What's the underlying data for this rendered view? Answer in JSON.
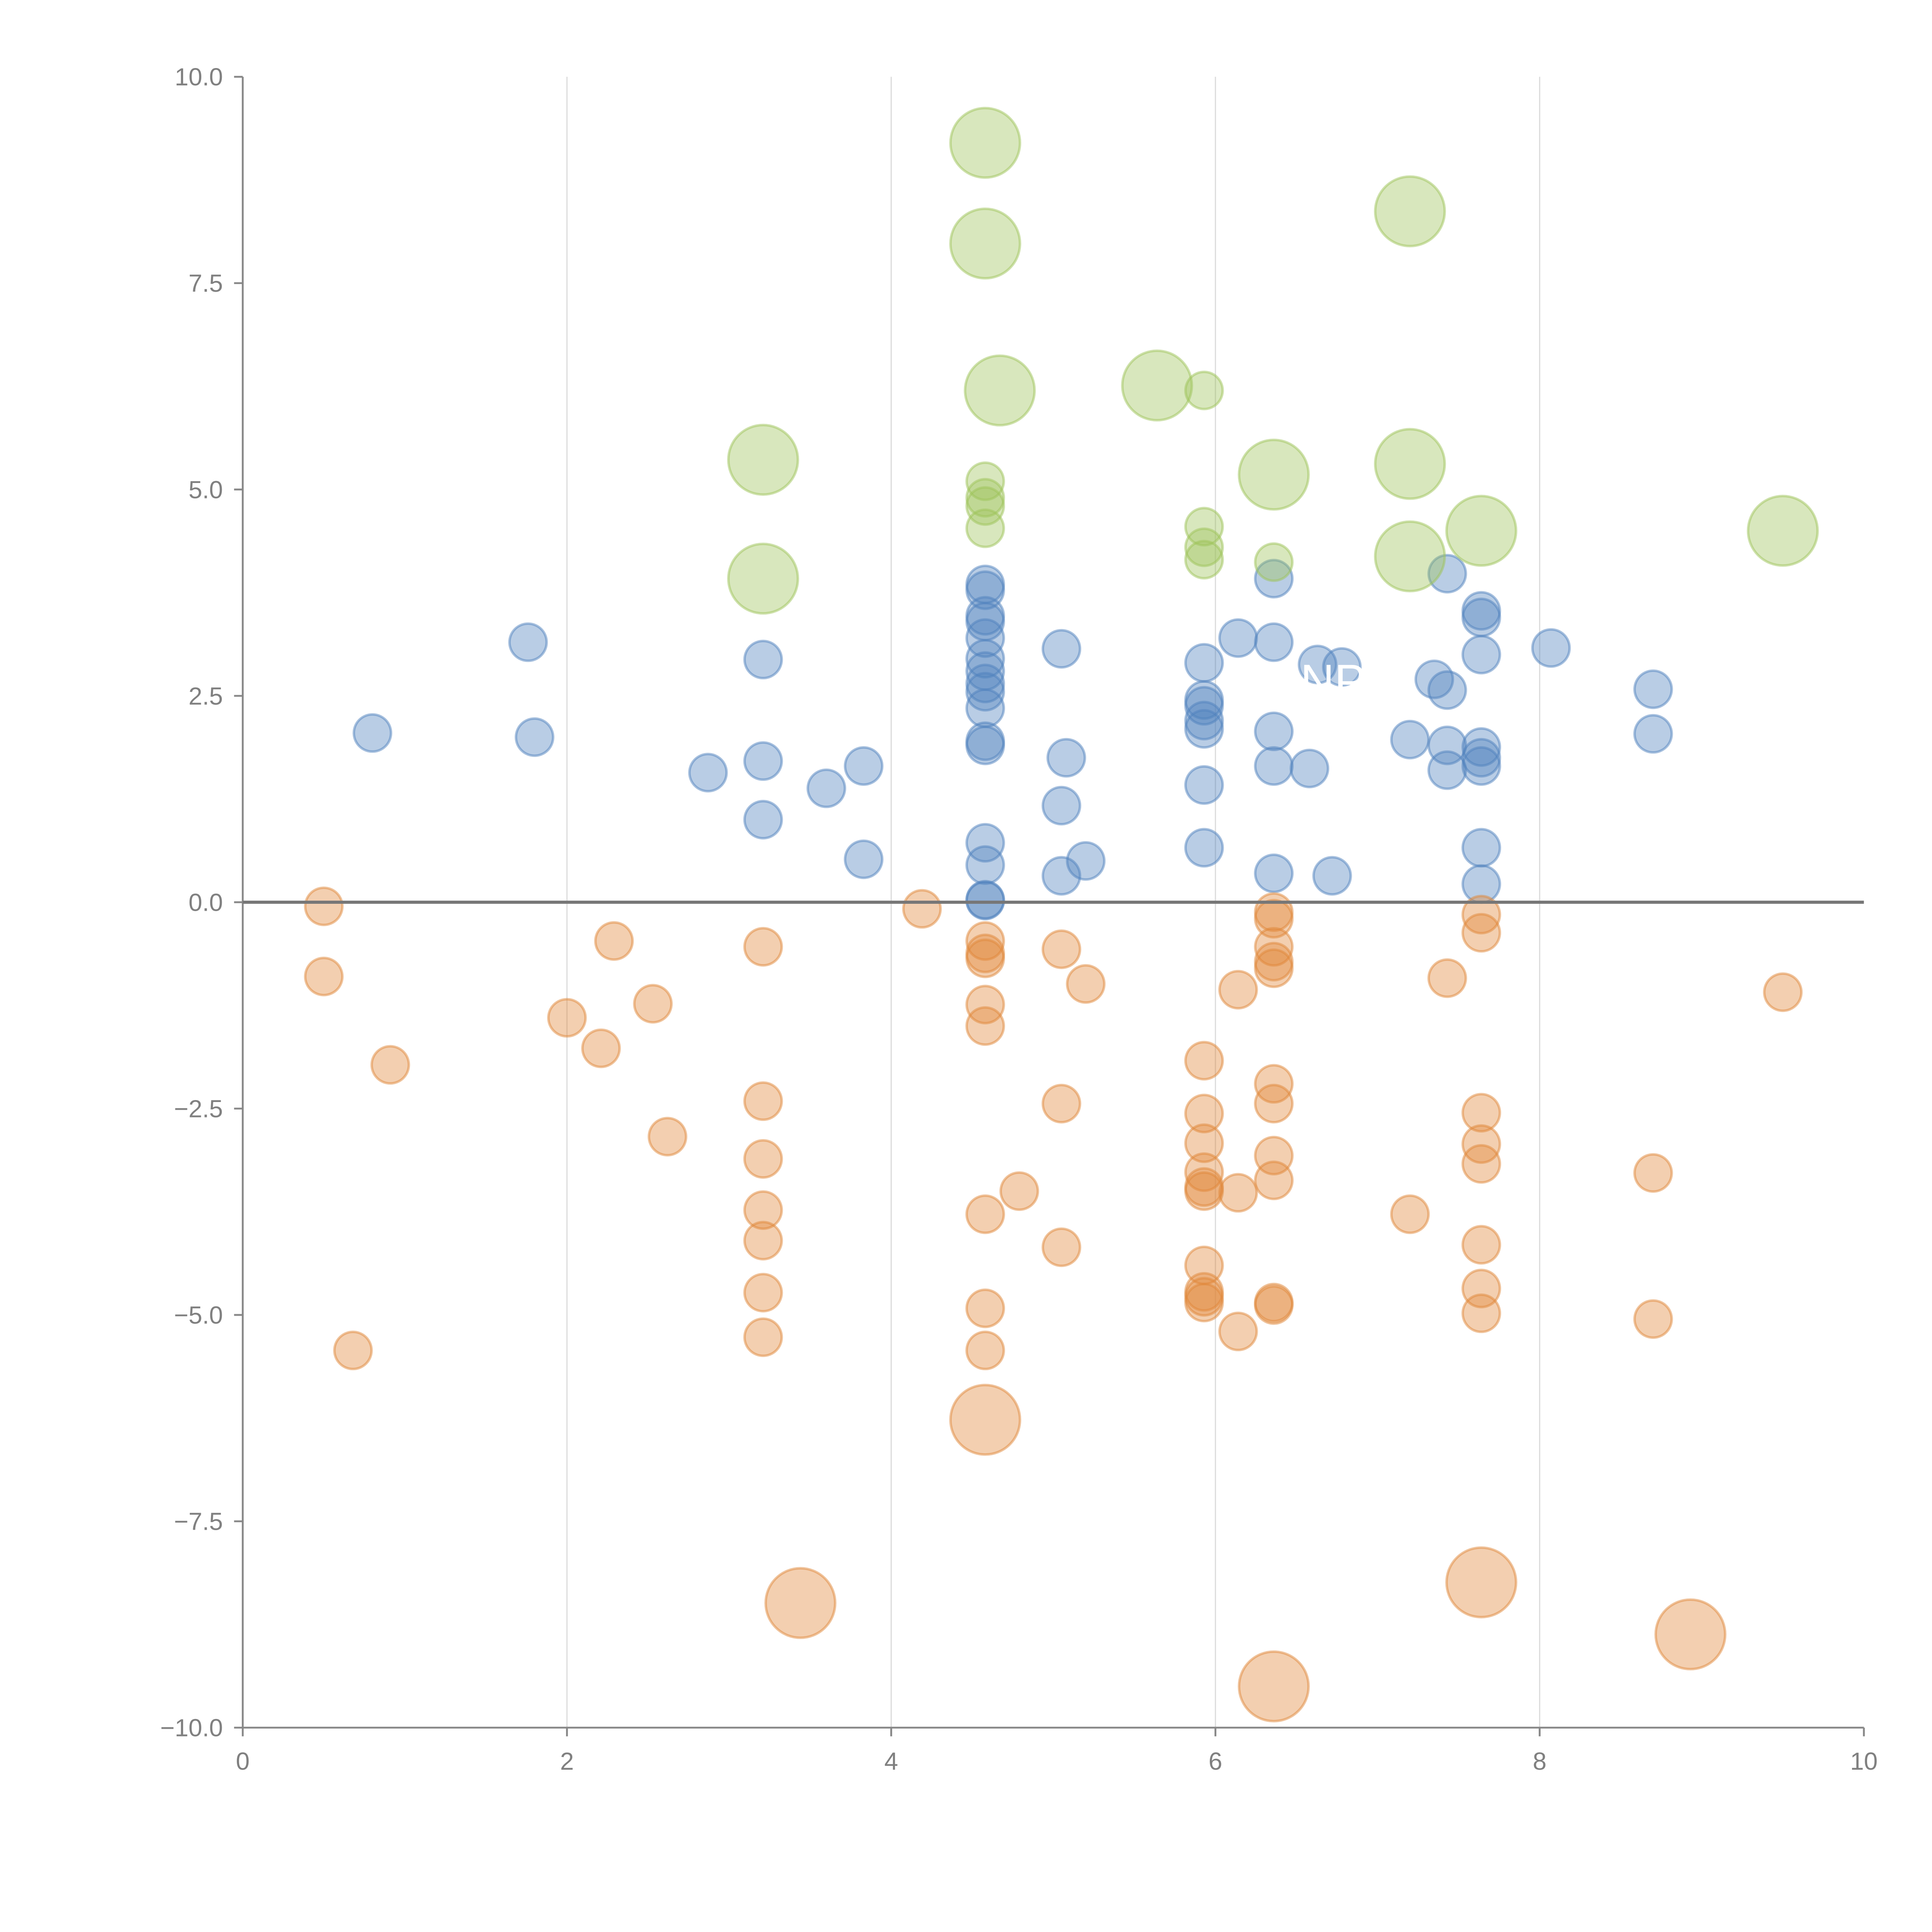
{
  "chart_data": {
    "type": "scatter",
    "title": "",
    "xlabel": "",
    "ylabel": "",
    "xlim": [
      0,
      10
    ],
    "ylim": [
      -10,
      10
    ],
    "grid": "vertical",
    "legend": "none",
    "x_ticks": [
      "0",
      "2",
      "4",
      "6",
      "8",
      "10"
    ],
    "y_ticks": [
      "10.0",
      "7.5",
      "5.0",
      "2.5",
      "0.0",
      "−2.5",
      "−5.0",
      "−7.5",
      "−10.0"
    ],
    "annotation": "NPR",
    "series": [
      {
        "name": "blue",
        "color": "#4f81bd",
        "points": [
          [
            0.8,
            2.05,
            1
          ],
          [
            1.76,
            3.15,
            1
          ],
          [
            1.8,
            2.0,
            1
          ],
          [
            2.87,
            1.57,
            1
          ],
          [
            3.21,
            2.94,
            1
          ],
          [
            3.21,
            1.71,
            1
          ],
          [
            3.21,
            1.0,
            1
          ],
          [
            3.6,
            1.38,
            1
          ],
          [
            3.83,
            1.65,
            1
          ],
          [
            3.83,
            0.52,
            1
          ],
          [
            4.58,
            3.85,
            1
          ],
          [
            4.58,
            3.78,
            1
          ],
          [
            4.58,
            3.47,
            1
          ],
          [
            4.58,
            3.4,
            1
          ],
          [
            4.58,
            3.2,
            1
          ],
          [
            4.58,
            2.95,
            1
          ],
          [
            4.58,
            2.8,
            1
          ],
          [
            4.58,
            2.65,
            1
          ],
          [
            4.58,
            2.55,
            1
          ],
          [
            4.58,
            2.35,
            1
          ],
          [
            4.58,
            1.95,
            1
          ],
          [
            4.58,
            1.9,
            1
          ],
          [
            4.58,
            0.72,
            1
          ],
          [
            4.58,
            0.45,
            1
          ],
          [
            4.58,
            0.03,
            1
          ],
          [
            4.58,
            0.02,
            1
          ],
          [
            5.05,
            3.07,
            1
          ],
          [
            5.08,
            1.75,
            1
          ],
          [
            5.05,
            1.17,
            1
          ],
          [
            5.05,
            0.32,
            1
          ],
          [
            5.2,
            0.5,
            1
          ],
          [
            5.93,
            2.9,
            1
          ],
          [
            5.93,
            2.45,
            1
          ],
          [
            5.93,
            2.38,
            1
          ],
          [
            5.93,
            2.2,
            1
          ],
          [
            5.93,
            2.1,
            1
          ],
          [
            5.93,
            1.42,
            1
          ],
          [
            5.93,
            0.66,
            1
          ],
          [
            6.14,
            3.2,
            1
          ],
          [
            6.36,
            3.92,
            1
          ],
          [
            6.36,
            3.15,
            1
          ],
          [
            6.36,
            2.07,
            1
          ],
          [
            6.36,
            1.65,
            1
          ],
          [
            6.36,
            0.35,
            1
          ],
          [
            6.58,
            1.62,
            1
          ],
          [
            6.63,
            2.88,
            1
          ],
          [
            6.78,
            2.85,
            1
          ],
          [
            6.72,
            0.32,
            1
          ],
          [
            7.2,
            1.97,
            1
          ],
          [
            7.35,
            2.7,
            1
          ],
          [
            7.43,
            3.98,
            1
          ],
          [
            7.43,
            2.57,
            1
          ],
          [
            7.43,
            1.9,
            1
          ],
          [
            7.43,
            1.6,
            1
          ],
          [
            7.64,
            3.53,
            1
          ],
          [
            7.64,
            3.45,
            1
          ],
          [
            7.64,
            3.0,
            1
          ],
          [
            7.64,
            1.88,
            1
          ],
          [
            7.64,
            1.75,
            1
          ],
          [
            7.64,
            1.65,
            1
          ],
          [
            7.64,
            0.66,
            1
          ],
          [
            7.64,
            0.22,
            1
          ],
          [
            8.07,
            3.08,
            1
          ],
          [
            8.7,
            2.58,
            1
          ],
          [
            8.7,
            2.04,
            1
          ]
        ]
      },
      {
        "name": "orange",
        "color": "#e0873a",
        "points": [
          [
            0.5,
            -0.05,
            1
          ],
          [
            0.5,
            -0.9,
            1
          ],
          [
            0.91,
            -1.97,
            1
          ],
          [
            0.68,
            -5.43,
            1
          ],
          [
            2.0,
            -1.4,
            1
          ],
          [
            2.21,
            -1.77,
            1
          ],
          [
            2.29,
            -0.47,
            1
          ],
          [
            2.53,
            -1.23,
            1
          ],
          [
            2.62,
            -2.84,
            1
          ],
          [
            3.21,
            -0.54,
            1
          ],
          [
            3.21,
            -2.41,
            1
          ],
          [
            3.21,
            -3.11,
            1
          ],
          [
            3.21,
            -3.73,
            1
          ],
          [
            3.21,
            -4.1,
            1
          ],
          [
            3.21,
            -4.73,
            1
          ],
          [
            3.21,
            -5.27,
            1
          ],
          [
            4.19,
            -0.08,
            1
          ],
          [
            4.58,
            -0.47,
            1
          ],
          [
            4.58,
            -0.62,
            1
          ],
          [
            4.58,
            -0.68,
            1
          ],
          [
            4.58,
            -1.24,
            1
          ],
          [
            4.58,
            -1.5,
            1
          ],
          [
            4.58,
            -3.78,
            1
          ],
          [
            4.58,
            -4.92,
            1
          ],
          [
            4.58,
            -5.43,
            1
          ],
          [
            4.79,
            -3.5,
            1
          ],
          [
            5.05,
            -0.57,
            1
          ],
          [
            5.05,
            -2.44,
            1
          ],
          [
            5.05,
            -4.18,
            1
          ],
          [
            5.2,
            -0.99,
            1
          ],
          [
            5.93,
            -1.92,
            1
          ],
          [
            5.93,
            -2.56,
            1
          ],
          [
            5.93,
            -2.92,
            1
          ],
          [
            5.93,
            -3.27,
            1
          ],
          [
            5.93,
            -3.45,
            1
          ],
          [
            5.93,
            -3.5,
            1
          ],
          [
            5.93,
            -4.4,
            1
          ],
          [
            5.93,
            -4.72,
            1
          ],
          [
            5.93,
            -4.78,
            1
          ],
          [
            5.93,
            -4.85,
            1
          ],
          [
            6.14,
            -1.06,
            1
          ],
          [
            6.14,
            -3.52,
            1
          ],
          [
            6.14,
            -5.2,
            1
          ],
          [
            6.36,
            -0.12,
            1
          ],
          [
            6.36,
            -0.2,
            1
          ],
          [
            6.36,
            -0.54,
            1
          ],
          [
            6.36,
            -0.72,
            1
          ],
          [
            6.36,
            -0.8,
            1
          ],
          [
            6.36,
            -2.2,
            1
          ],
          [
            6.36,
            -2.44,
            1
          ],
          [
            6.36,
            -3.07,
            1
          ],
          [
            6.36,
            -3.37,
            1
          ],
          [
            6.36,
            -4.85,
            1
          ],
          [
            6.36,
            -4.88,
            1
          ],
          [
            7.2,
            -3.78,
            1
          ],
          [
            7.43,
            -0.92,
            1
          ],
          [
            7.64,
            -0.15,
            1
          ],
          [
            7.64,
            -0.37,
            1
          ],
          [
            7.64,
            -2.55,
            1
          ],
          [
            7.64,
            -2.93,
            1
          ],
          [
            7.64,
            -3.17,
            1
          ],
          [
            7.64,
            -4.15,
            1
          ],
          [
            7.64,
            -4.68,
            1
          ],
          [
            7.64,
            -4.98,
            1
          ],
          [
            8.7,
            -3.28,
            1
          ],
          [
            8.7,
            -5.05,
            1
          ],
          [
            9.5,
            -1.09,
            1
          ],
          [
            4.58,
            -6.27,
            3.5
          ],
          [
            3.44,
            -8.49,
            3.5
          ],
          [
            7.64,
            -8.24,
            3.5
          ],
          [
            8.93,
            -8.87,
            3.5
          ],
          [
            6.36,
            -9.5,
            3.5
          ]
        ]
      },
      {
        "name": "green",
        "color": "#9dc35a",
        "points": [
          [
            4.58,
            9.2,
            3.5
          ],
          [
            4.58,
            7.98,
            3.5
          ],
          [
            4.67,
            6.2,
            3.5
          ],
          [
            5.64,
            6.26,
            3.5
          ],
          [
            3.21,
            5.36,
            3.5
          ],
          [
            3.21,
            3.92,
            3.5
          ],
          [
            6.36,
            5.18,
            3.5
          ],
          [
            7.2,
            8.37,
            3.5
          ],
          [
            7.2,
            5.31,
            3.5
          ],
          [
            7.2,
            4.19,
            3.5
          ],
          [
            7.64,
            4.5,
            3.5
          ],
          [
            9.5,
            4.5,
            3.5
          ],
          [
            4.58,
            5.1,
            1
          ],
          [
            4.58,
            4.9,
            1
          ],
          [
            4.58,
            4.8,
            1
          ],
          [
            4.58,
            4.53,
            1
          ],
          [
            5.93,
            6.2,
            1
          ],
          [
            5.93,
            4.55,
            1
          ],
          [
            5.93,
            4.3,
            1
          ],
          [
            5.93,
            4.15,
            1
          ],
          [
            6.36,
            4.12,
            1
          ]
        ]
      }
    ]
  }
}
